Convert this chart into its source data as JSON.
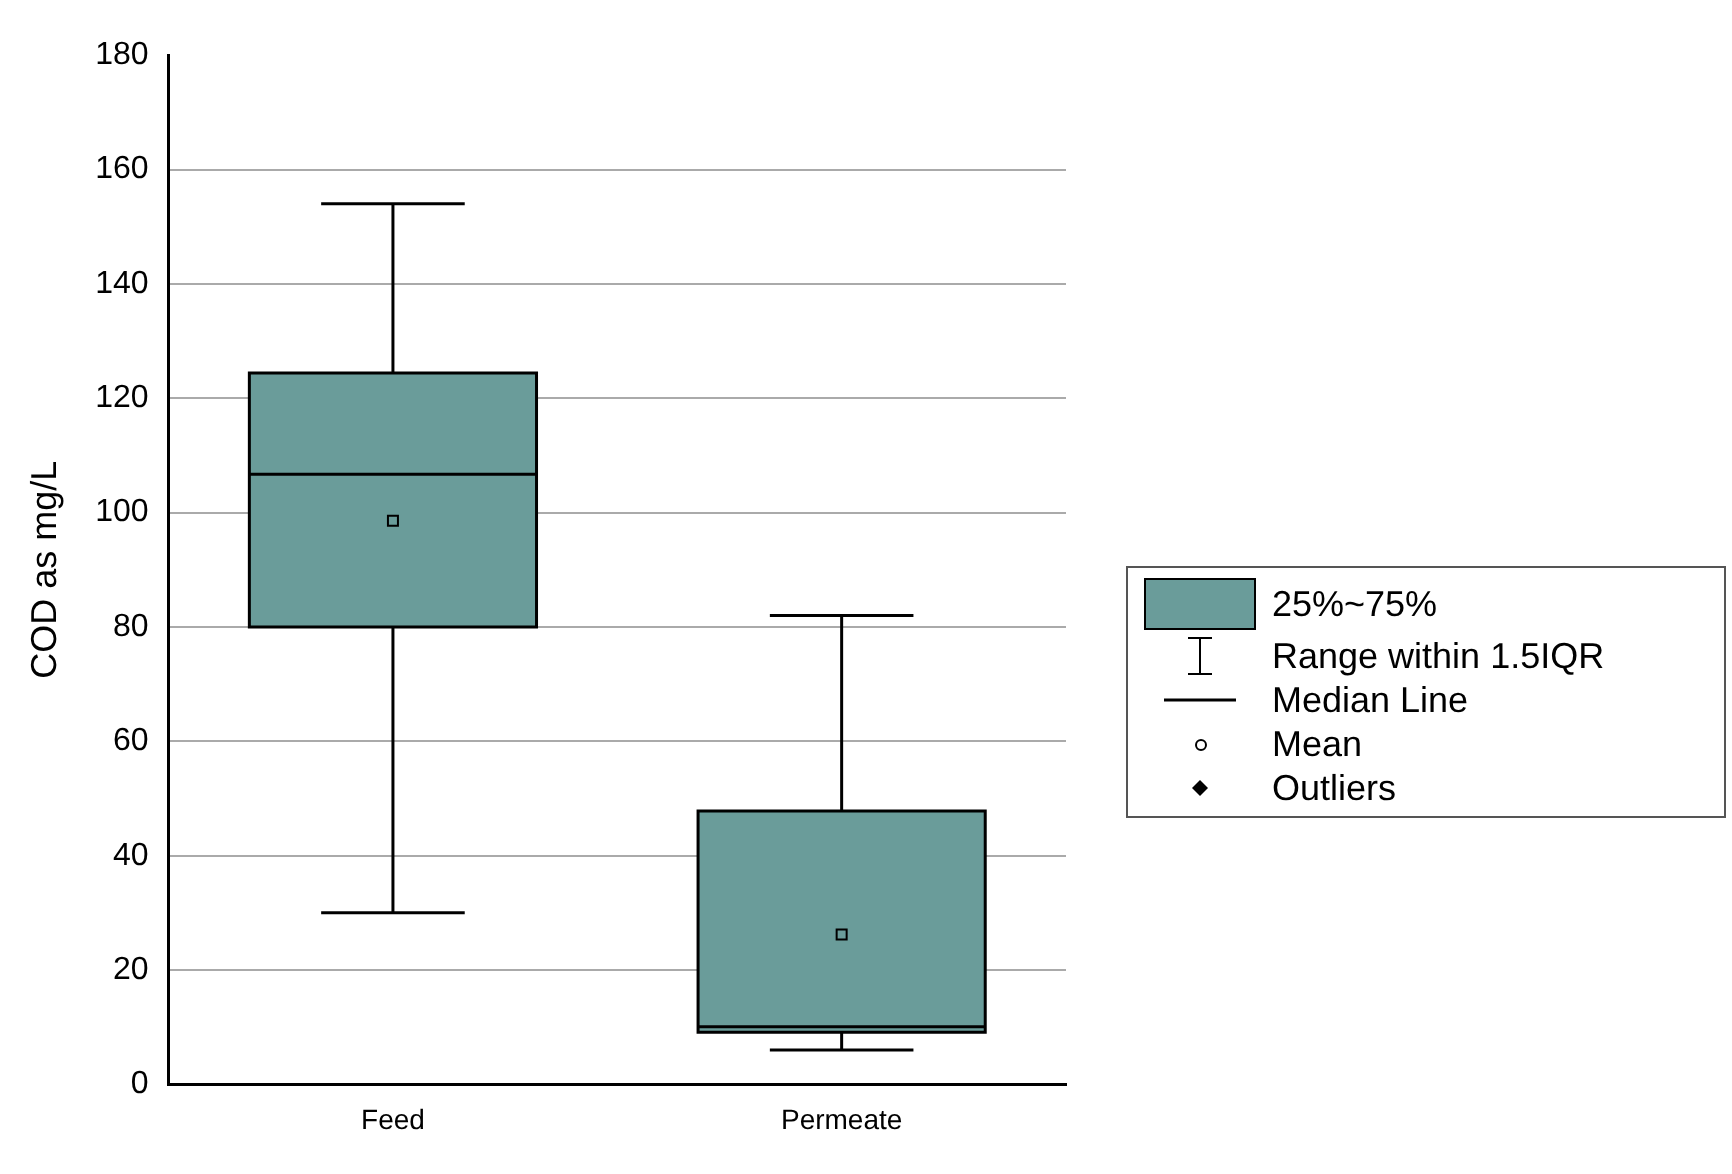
{
  "chart_data": {
    "type": "box",
    "ylabel": "COD as mg/L",
    "categories": [
      "Feed",
      "Permeate"
    ],
    "series": [
      {
        "color": "#6a9c9a",
        "boxes": [
          {
            "low": 30,
            "q1": 80,
            "median": 106.7,
            "q3": 124.4,
            "high": 154,
            "mean": 98.6
          },
          {
            "low": 6,
            "q1": 9.1,
            "median": 10.1,
            "q3": 47.8,
            "high": 82,
            "mean": 26.2
          }
        ]
      }
    ],
    "ylim": [
      0,
      180
    ],
    "yticks": [
      0,
      20,
      40,
      60,
      80,
      100,
      120,
      140,
      160,
      180
    ],
    "grid": "y",
    "annotations": [
      "25%~75%",
      "Range within 1.5IQR",
      "Median Line",
      "Mean",
      "Outliers"
    ]
  }
}
